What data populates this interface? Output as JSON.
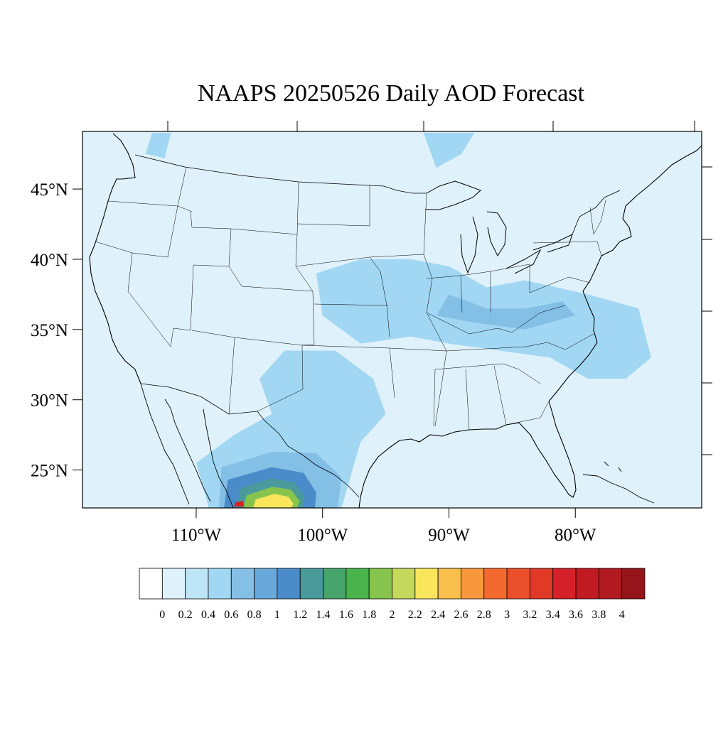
{
  "title": "NAAPS 20250526 Daily AOD Forecast",
  "map": {
    "extent": {
      "lon_min": -119,
      "lon_max": -70,
      "lat_min": 22.3,
      "lat_max": 49.1
    },
    "lat_ticks": [
      {
        "value": 45,
        "label": "45°N"
      },
      {
        "value": 40,
        "label": "40°N"
      },
      {
        "value": 35,
        "label": "35°N"
      },
      {
        "value": 30,
        "label": "30°N"
      },
      {
        "value": 25,
        "label": "25°N"
      }
    ],
    "lon_ticks": [
      {
        "value": -110,
        "label": "110°W"
      },
      {
        "value": -100,
        "label": "100°W"
      },
      {
        "value": -90,
        "label": "90°W"
      },
      {
        "value": -80,
        "label": "80°W"
      }
    ],
    "land_fill": "#dff1fb",
    "ocean_fill": "#dff1fb",
    "aod_patches": [
      {
        "level": 0.4,
        "points": [
          [
            -97,
            40
          ],
          [
            -93,
            40
          ],
          [
            -90,
            39.5
          ],
          [
            -87,
            38
          ],
          [
            -84,
            38.5
          ],
          [
            -79,
            37.5
          ],
          [
            -75,
            36.5
          ],
          [
            -74,
            33
          ],
          [
            -76,
            31.5
          ],
          [
            -79,
            31.5
          ],
          [
            -82,
            33
          ],
          [
            -86,
            33.5
          ],
          [
            -90,
            34
          ],
          [
            -93,
            34.5
          ],
          [
            -97,
            34
          ],
          [
            -100,
            36
          ],
          [
            -100.5,
            39
          ]
        ]
      },
      {
        "level": 0.4,
        "points": [
          [
            -103,
            33.5
          ],
          [
            -99,
            33.5
          ],
          [
            -96,
            31.5
          ],
          [
            -95,
            29
          ],
          [
            -97,
            27
          ],
          [
            -98.5,
            22.3
          ],
          [
            -109,
            22.3
          ],
          [
            -110,
            25.5
          ],
          [
            -107,
            27.5
          ],
          [
            -104,
            29
          ],
          [
            -105,
            31.5
          ]
        ]
      },
      {
        "level": 0.4,
        "points": [
          [
            -92,
            49
          ],
          [
            -88,
            49
          ],
          [
            -89,
            47.5
          ],
          [
            -91,
            46.5
          ]
        ]
      },
      {
        "level": 0.4,
        "points": [
          [
            -113.5,
            49
          ],
          [
            -112,
            49
          ],
          [
            -112.5,
            47.2
          ],
          [
            -114,
            47.5
          ]
        ]
      },
      {
        "level": 0.6,
        "points": [
          [
            -90,
            37.5
          ],
          [
            -87,
            36.5
          ],
          [
            -84,
            36.5
          ],
          [
            -81,
            37
          ],
          [
            -80,
            36
          ],
          [
            -84,
            35
          ],
          [
            -88,
            35.5
          ],
          [
            -91,
            36
          ]
        ]
      },
      {
        "level": 0.6,
        "points": [
          [
            -108,
            25.2
          ],
          [
            -104,
            26.3
          ],
          [
            -100.5,
            26.2
          ],
          [
            -98.5,
            24.5
          ],
          [
            -98.8,
            22.3
          ],
          [
            -108.2,
            22.3
          ]
        ]
      },
      {
        "level": 1,
        "points": [
          [
            -107.5,
            24.3
          ],
          [
            -104,
            25.2
          ],
          [
            -101.5,
            24.8
          ],
          [
            -100.5,
            23.4
          ],
          [
            -100.6,
            22.3
          ],
          [
            -107.8,
            22.3
          ]
        ]
      },
      {
        "level": 1.2,
        "points": [
          [
            -106.5,
            23.7
          ],
          [
            -104,
            24.4
          ],
          [
            -102.2,
            24.1
          ],
          [
            -101.4,
            23.1
          ],
          [
            -101.6,
            22.3
          ],
          [
            -106.8,
            22.3
          ]
        ]
      },
      {
        "level": 1.8,
        "points": [
          [
            -106,
            23.2
          ],
          [
            -104,
            23.8
          ],
          [
            -102.5,
            23.6
          ],
          [
            -101.8,
            22.8
          ],
          [
            -102,
            22.3
          ],
          [
            -106.3,
            22.3
          ]
        ]
      },
      {
        "level": 2.2,
        "points": [
          [
            -105.3,
            22.9
          ],
          [
            -103.8,
            23.3
          ],
          [
            -102.7,
            23.1
          ],
          [
            -102.3,
            22.6
          ],
          [
            -102.5,
            22.3
          ],
          [
            -105.5,
            22.3
          ]
        ]
      },
      {
        "level": 3.4,
        "points": [
          [
            -106.9,
            22.7
          ],
          [
            -106.3,
            22.8
          ],
          [
            -106.2,
            22.4
          ],
          [
            -107,
            22.4
          ]
        ]
      }
    ]
  },
  "colorbar": {
    "colors": [
      "#ffffff",
      "#dff1fb",
      "#bde4f7",
      "#a1d7f3",
      "#84bfe6",
      "#69a8da",
      "#4a8cc9",
      "#4a9a9c",
      "#47a56c",
      "#4ab34c",
      "#86c44e",
      "#c4d85b",
      "#f8e55c",
      "#f9be4b",
      "#f7983c",
      "#f46a2e",
      "#e9502b",
      "#e03a27",
      "#d42028",
      "#c01a23",
      "#b01a20",
      "#95151b"
    ],
    "labels": [
      "0",
      "0.2",
      "0.4",
      "0.6",
      "0.8",
      "1",
      "1.2",
      "1.4",
      "1.6",
      "1.8",
      "2",
      "2.2",
      "2.4",
      "2.6",
      "2.8",
      "3",
      "3.2",
      "3.4",
      "3.6",
      "3.8",
      "4"
    ]
  }
}
